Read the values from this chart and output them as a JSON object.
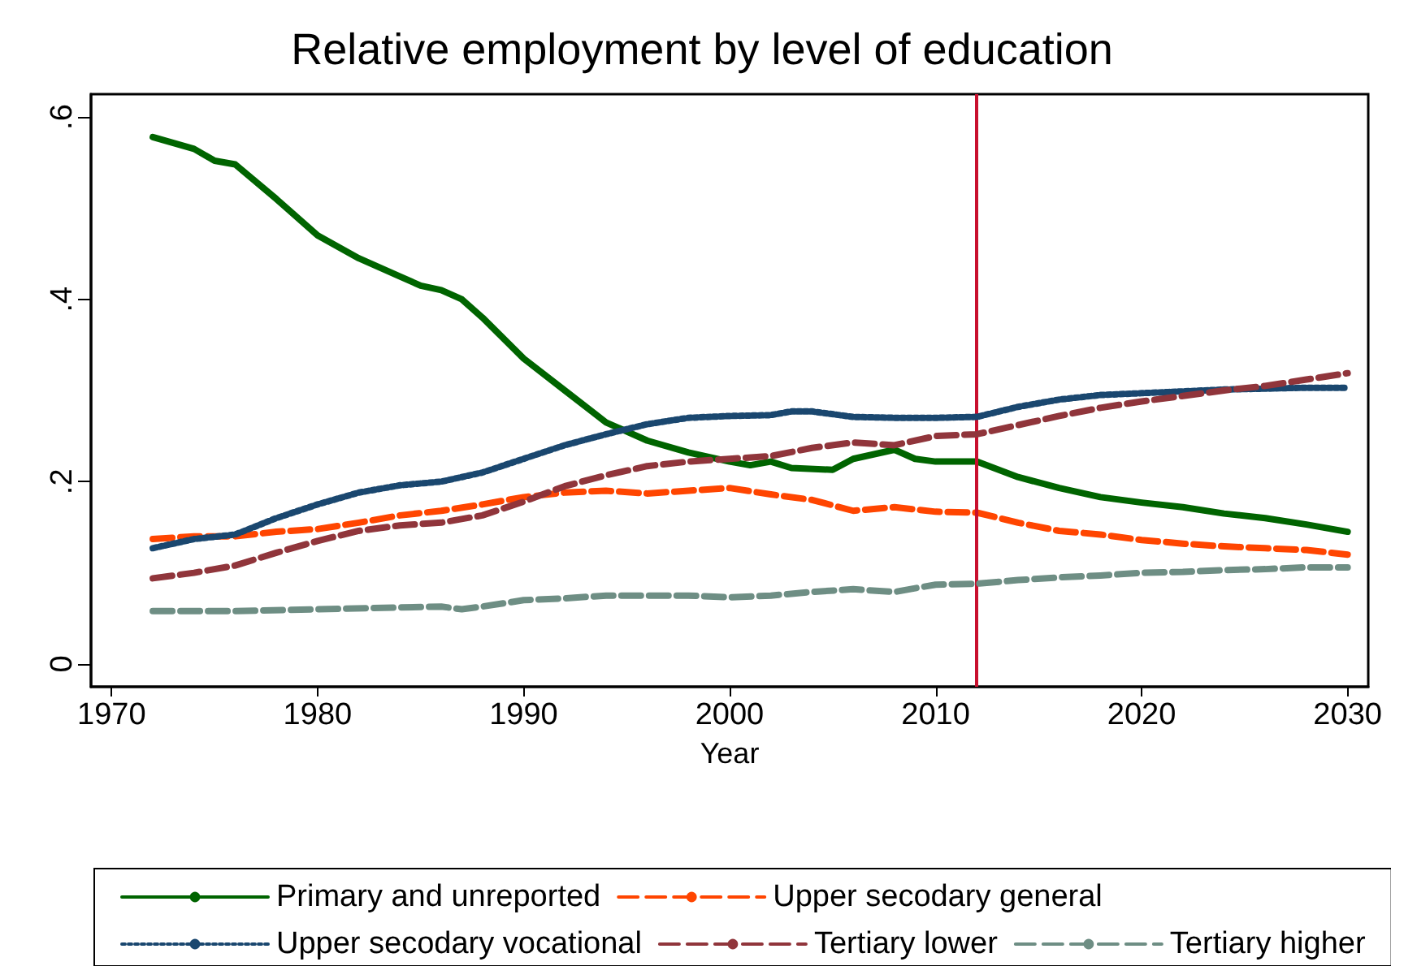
{
  "chart_data": {
    "type": "line",
    "title": "Relative employment by level of education",
    "xlabel": "Year",
    "xlim": [
      1969,
      2031
    ],
    "xticks": [
      1970,
      1980,
      1990,
      2000,
      2010,
      2020,
      2030
    ],
    "ylim": [
      -0.025,
      0.625
    ],
    "yticks": [
      {
        "value": 0,
        "label": "0"
      },
      {
        "value": 0.2,
        "label": ".2"
      },
      {
        "value": 0.4,
        "label": ".4"
      },
      {
        "value": 0.6,
        "label": ".6"
      }
    ],
    "grid": false,
    "legend": "bottom",
    "marker": "none",
    "ref_lines": [
      {
        "axis": "x",
        "value": 2012,
        "color": "#c8102e"
      }
    ],
    "series": [
      {
        "name": "Primary and unreported",
        "color": "#006400",
        "line_style": "solid",
        "x": [
          1972,
          1974,
          1975,
          1976,
          1978,
          1980,
          1982,
          1984,
          1985,
          1986,
          1987,
          1988,
          1990,
          1992,
          1994,
          1996,
          1998,
          2000,
          2001,
          2002,
          2003,
          2005,
          2006,
          2008,
          2009,
          2010,
          2012,
          2014,
          2016,
          2018,
          2020,
          2022,
          2024,
          2026,
          2028,
          2030
        ],
        "values": [
          0.578,
          0.565,
          0.552,
          0.548,
          0.51,
          0.47,
          0.445,
          0.425,
          0.415,
          0.41,
          0.4,
          0.38,
          0.335,
          0.3,
          0.265,
          0.245,
          0.232,
          0.222,
          0.218,
          0.222,
          0.215,
          0.213,
          0.225,
          0.235,
          0.225,
          0.222,
          0.222,
          0.205,
          0.193,
          0.183,
          0.177,
          0.172,
          0.165,
          0.16,
          0.153,
          0.145
        ]
      },
      {
        "name": "Upper secodary general",
        "color": "#ff4500",
        "line_style": "dashed",
        "x": [
          1972,
          1974,
          1976,
          1978,
          1980,
          1982,
          1984,
          1986,
          1988,
          1990,
          1992,
          1994,
          1996,
          1998,
          2000,
          2002,
          2004,
          2006,
          2008,
          2010,
          2012,
          2014,
          2016,
          2018,
          2020,
          2022,
          2024,
          2026,
          2028,
          2030
        ],
        "values": [
          0.137,
          0.14,
          0.14,
          0.145,
          0.148,
          0.155,
          0.163,
          0.168,
          0.175,
          0.183,
          0.188,
          0.19,
          0.187,
          0.19,
          0.193,
          0.186,
          0.18,
          0.168,
          0.172,
          0.167,
          0.166,
          0.155,
          0.146,
          0.142,
          0.136,
          0.132,
          0.129,
          0.127,
          0.125,
          0.12
        ]
      },
      {
        "name": "Upper secodary vocational",
        "color": "#1a476f",
        "line_style": "dotted",
        "x": [
          1972,
          1974,
          1976,
          1978,
          1980,
          1982,
          1984,
          1986,
          1988,
          1990,
          1992,
          1994,
          1996,
          1998,
          2000,
          2002,
          2003,
          2004,
          2006,
          2008,
          2010,
          2012,
          2014,
          2016,
          2018,
          2020,
          2022,
          2024,
          2026,
          2028,
          2030
        ],
        "values": [
          0.127,
          0.137,
          0.142,
          0.16,
          0.175,
          0.188,
          0.196,
          0.2,
          0.21,
          0.225,
          0.24,
          0.252,
          0.263,
          0.27,
          0.272,
          0.273,
          0.277,
          0.277,
          0.271,
          0.27,
          0.27,
          0.271,
          0.282,
          0.29,
          0.295,
          0.297,
          0.299,
          0.301,
          0.302,
          0.303,
          0.303
        ]
      },
      {
        "name": "Tertiary lower",
        "color": "#90353b",
        "line_style": "dashed",
        "x": [
          1972,
          1974,
          1976,
          1978,
          1980,
          1982,
          1984,
          1986,
          1988,
          1990,
          1992,
          1994,
          1996,
          1998,
          2000,
          2002,
          2004,
          2006,
          2008,
          2010,
          2012,
          2014,
          2016,
          2018,
          2020,
          2022,
          2024,
          2026,
          2028,
          2030
        ],
        "values": [
          0.094,
          0.1,
          0.108,
          0.122,
          0.135,
          0.146,
          0.152,
          0.155,
          0.163,
          0.178,
          0.195,
          0.207,
          0.217,
          0.222,
          0.225,
          0.228,
          0.237,
          0.243,
          0.24,
          0.25,
          0.252,
          0.262,
          0.272,
          0.281,
          0.288,
          0.294,
          0.3,
          0.305,
          0.312,
          0.319
        ]
      },
      {
        "name": "Tertiary higher",
        "color": "#6e8e84",
        "line_style": "dashed",
        "x": [
          1972,
          1976,
          1980,
          1984,
          1986,
          1987,
          1988,
          1990,
          1992,
          1994,
          1996,
          1998,
          2000,
          2002,
          2004,
          2006,
          2008,
          2010,
          2012,
          2014,
          2016,
          2018,
          2020,
          2022,
          2024,
          2026,
          2028,
          2030
        ],
        "values": [
          0.058,
          0.058,
          0.06,
          0.062,
          0.063,
          0.06,
          0.063,
          0.07,
          0.072,
          0.075,
          0.075,
          0.075,
          0.073,
          0.075,
          0.079,
          0.082,
          0.079,
          0.087,
          0.088,
          0.092,
          0.095,
          0.097,
          0.1,
          0.101,
          0.103,
          0.104,
          0.106,
          0.106
        ]
      }
    ]
  }
}
